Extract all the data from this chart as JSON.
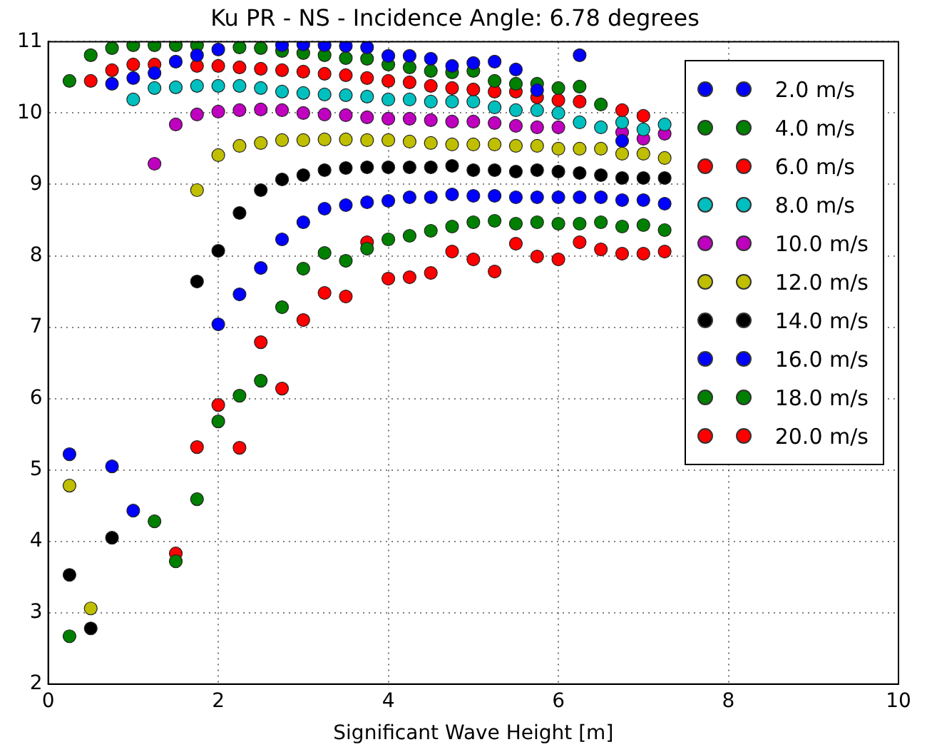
{
  "chart_data": {
    "type": "scatter",
    "title": "Ku PR - NS - Incidence Angle: 6.78 degrees",
    "xlabel": "Significant Wave Height [m]",
    "xlim": [
      0,
      10
    ],
    "xticks": [
      0,
      2,
      4,
      6,
      8,
      10
    ],
    "ylim": [
      2,
      11
    ],
    "yticks": [
      2,
      3,
      4,
      5,
      6,
      7,
      8,
      9,
      10,
      11
    ],
    "grid": true,
    "legend": "top right",
    "marker": "circle",
    "series": [
      {
        "name": "2.0 m/s",
        "color": "#0000ff",
        "x": [
          0.75,
          1.0,
          1.25,
          1.5,
          1.75,
          2.0,
          2.75,
          3.0,
          3.25,
          3.5,
          3.75,
          4.0,
          4.25,
          4.5,
          4.75,
          5.0,
          5.25,
          5.5,
          5.75,
          6.25,
          6.75
        ],
        "values": [
          10.41,
          10.49,
          10.56,
          10.72,
          10.81,
          10.89,
          10.95,
          10.96,
          10.95,
          10.94,
          10.92,
          10.8,
          10.8,
          10.76,
          10.66,
          10.7,
          10.72,
          10.61,
          10.32,
          10.81,
          9.61
        ]
      },
      {
        "name": "4.0 m/s",
        "color": "#008000",
        "x": [
          0.25,
          0.5,
          0.75,
          1.0,
          1.25,
          1.5,
          1.75,
          2.0,
          2.25,
          2.5,
          2.75,
          3.0,
          3.25,
          3.5,
          3.75,
          4.0,
          4.25,
          4.5,
          4.75,
          5.0,
          5.25,
          5.5,
          5.75,
          6.0,
          6.25,
          6.5
        ],
        "values": [
          10.45,
          10.81,
          10.91,
          10.95,
          10.95,
          10.95,
          10.95,
          null,
          10.92,
          10.91,
          10.87,
          10.84,
          10.81,
          10.77,
          10.76,
          10.68,
          10.64,
          10.59,
          10.57,
          10.59,
          10.45,
          10.41,
          10.41,
          10.35,
          10.37,
          10.12
        ]
      },
      {
        "name": "6.0 m/s",
        "color": "#ff0000",
        "x": [
          0.5,
          0.75,
          1.0,
          1.25,
          1.5,
          1.75,
          2.0,
          2.25,
          2.5,
          2.75,
          3.0,
          3.25,
          3.5,
          3.75,
          4.0,
          4.25,
          4.5,
          4.75,
          5.0,
          5.25,
          5.5,
          5.75,
          6.0,
          6.25,
          6.5,
          6.75,
          7.0
        ],
        "values": [
          10.45,
          10.6,
          10.68,
          10.68,
          null,
          10.66,
          10.66,
          10.64,
          10.62,
          10.6,
          10.58,
          10.55,
          10.53,
          10.49,
          10.45,
          10.43,
          10.38,
          10.35,
          10.33,
          10.3,
          10.3,
          10.22,
          10.18,
          10.16,
          null,
          10.04,
          9.96
        ]
      },
      {
        "name": "8.0 m/s",
        "color": "#00bfbf",
        "x": [
          1.0,
          1.25,
          1.5,
          1.75,
          2.0,
          2.25,
          2.5,
          2.75,
          3.0,
          3.25,
          3.5,
          3.75,
          4.0,
          4.25,
          4.5,
          4.75,
          5.0,
          5.25,
          5.5,
          5.75,
          6.0,
          6.25,
          6.5,
          6.75,
          7.0,
          7.25
        ],
        "values": [
          10.19,
          10.35,
          10.36,
          10.38,
          10.38,
          10.38,
          10.35,
          10.3,
          10.28,
          10.26,
          10.25,
          10.23,
          10.19,
          10.19,
          10.16,
          10.16,
          10.16,
          10.08,
          10.04,
          10.04,
          10.0,
          9.87,
          9.8,
          9.87,
          9.77,
          9.84
        ]
      },
      {
        "name": "10.0 m/s",
        "color": "#bf00bf",
        "x": [
          1.25,
          1.5,
          1.75,
          2.0,
          2.25,
          2.5,
          2.75,
          3.0,
          3.25,
          3.5,
          3.75,
          4.0,
          4.25,
          4.5,
          4.75,
          5.0,
          5.25,
          5.5,
          5.75,
          6.0,
          6.25,
          6.5,
          6.75,
          7.0,
          7.25
        ],
        "values": [
          9.29,
          9.84,
          9.98,
          10.02,
          10.04,
          10.05,
          10.04,
          10.0,
          9.98,
          9.97,
          9.94,
          9.92,
          9.92,
          9.9,
          9.88,
          9.88,
          9.86,
          9.82,
          9.8,
          9.8,
          null,
          null,
          9.73,
          9.64,
          9.71
        ]
      },
      {
        "name": "12.0 m/s",
        "color": "#bfbf00",
        "x": [
          0.25,
          0.5,
          1.75,
          2.0,
          2.25,
          2.5,
          2.75,
          3.0,
          3.25,
          3.5,
          3.75,
          4.0,
          4.25,
          4.5,
          4.75,
          5.0,
          5.25,
          5.5,
          5.75,
          6.0,
          6.25,
          6.5,
          6.75,
          7.0,
          7.25
        ],
        "values": [
          4.78,
          3.06,
          8.92,
          9.41,
          9.54,
          9.58,
          9.62,
          9.62,
          9.63,
          9.63,
          9.62,
          9.62,
          9.6,
          9.58,
          9.56,
          9.56,
          9.56,
          9.54,
          9.54,
          9.5,
          9.5,
          9.5,
          9.43,
          9.43,
          9.37
        ]
      },
      {
        "name": "14.0 m/s",
        "color": "#000000",
        "x": [
          0.25,
          0.5,
          0.75,
          1.75,
          2.0,
          2.25,
          2.5,
          2.75,
          3.0,
          3.25,
          3.5,
          3.75,
          4.0,
          4.25,
          4.5,
          4.75,
          5.0,
          5.25,
          5.5,
          5.75,
          6.0,
          6.25,
          6.5,
          6.75,
          7.0,
          7.25
        ],
        "values": [
          3.53,
          2.78,
          4.05,
          7.64,
          8.07,
          8.6,
          8.92,
          9.07,
          9.13,
          9.2,
          9.23,
          9.24,
          9.24,
          9.24,
          9.24,
          9.26,
          9.2,
          9.2,
          9.18,
          9.2,
          9.18,
          9.16,
          9.13,
          9.09,
          9.09,
          9.09
        ]
      },
      {
        "name": "16.0 m/s",
        "color": "#0000ff",
        "x": [
          0.25,
          0.75,
          1.0,
          2.0,
          2.25,
          2.5,
          2.75,
          3.0,
          3.25,
          3.5,
          3.75,
          4.0,
          4.25,
          4.5,
          4.75,
          5.0,
          5.25,
          5.5,
          5.75,
          6.0,
          6.25,
          6.5,
          6.75,
          7.0,
          7.25
        ],
        "values": [
          5.22,
          5.05,
          4.43,
          7.04,
          7.46,
          7.83,
          8.23,
          8.47,
          8.66,
          8.71,
          8.75,
          8.77,
          8.82,
          8.82,
          8.86,
          8.84,
          8.84,
          8.82,
          8.82,
          8.82,
          8.82,
          8.82,
          8.78,
          8.78,
          8.73
        ]
      },
      {
        "name": "18.0 m/s",
        "color": "#008000",
        "x": [
          0.25,
          1.25,
          1.5,
          1.75,
          2.0,
          2.25,
          2.5,
          2.75,
          3.0,
          3.25,
          3.5,
          3.75,
          4.0,
          4.25,
          4.5,
          4.75,
          5.0,
          5.25,
          5.5,
          5.75,
          6.0,
          6.25,
          6.5,
          6.75,
          7.0,
          7.25
        ],
        "values": [
          2.67,
          4.28,
          3.72,
          4.59,
          5.68,
          6.04,
          6.25,
          7.28,
          7.82,
          8.04,
          7.93,
          8.1,
          8.23,
          8.28,
          8.35,
          8.41,
          8.47,
          8.49,
          8.45,
          8.47,
          8.45,
          8.45,
          8.47,
          8.41,
          8.43,
          8.36
        ]
      },
      {
        "name": "20.0 m/s",
        "color": "#ff0000",
        "x": [
          1.5,
          1.75,
          2.0,
          2.25,
          2.5,
          2.75,
          3.0,
          3.25,
          3.5,
          3.75,
          4.0,
          4.25,
          4.5,
          4.75,
          5.0,
          5.25,
          5.5,
          5.75,
          6.0,
          6.25,
          6.5,
          6.75,
          7.0,
          7.25
        ],
        "values": [
          3.83,
          5.32,
          5.91,
          5.31,
          6.79,
          6.14,
          7.1,
          7.48,
          7.43,
          8.19,
          7.68,
          7.7,
          7.76,
          8.06,
          7.95,
          7.78,
          8.17,
          7.99,
          7.95,
          8.19,
          8.09,
          8.03,
          8.03,
          8.06
        ]
      }
    ]
  }
}
